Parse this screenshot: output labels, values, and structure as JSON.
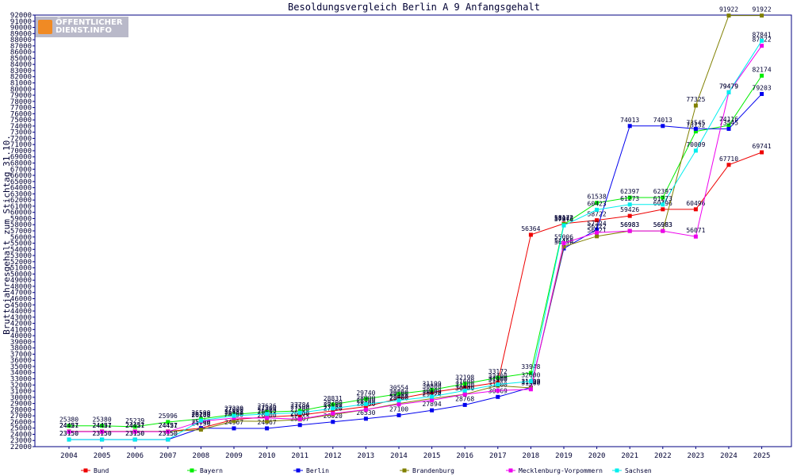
{
  "branding": {
    "line1": "ÖFFENTLICHER",
    "line2": "DIENST.INFO"
  },
  "chart_data": {
    "type": "line",
    "title": "Besoldungsvergleich Berlin A 9 Anfangsgehalt",
    "xlabel": "",
    "ylabel": "Bruttojahresgehalt zum Stichtag 31.10.",
    "ylim": [
      22000,
      92000
    ],
    "ytick_step": 1000,
    "grid": false,
    "legend_position": "bottom",
    "categories": [
      "2004",
      "2005",
      "2006",
      "2007",
      "2008",
      "2009",
      "2010",
      "2011",
      "2012",
      "2013",
      "2014",
      "2015",
      "2016",
      "2017",
      "2018",
      "2019",
      "2020",
      "2021",
      "2022",
      "2023",
      "2024",
      "2025"
    ],
    "series": [
      {
        "name": "Bund",
        "color": "#ee0000",
        "values": [
          24457,
          24457,
          24457,
          24457,
          25000,
          26400,
          26800,
          27100,
          27800,
          28500,
          29800,
          30800,
          31600,
          32400,
          56364,
          58172,
          58722,
          59426,
          60496,
          60496,
          67710,
          69741
        ]
      },
      {
        "name": "Bayern",
        "color": "#00ee00",
        "values": [
          25380,
          25380,
          25239,
          25996,
          26500,
          27229,
          27626,
          27784,
          28831,
          29740,
          30554,
          31199,
          32198,
          33172,
          33948,
          58043,
          61538,
          62397,
          62397,
          73132,
          74116,
          82174
        ]
      },
      {
        "name": "Berlin",
        "color": "#0000ee",
        "values": [
          23150,
          23150,
          23150,
          23150,
          25000,
          24967,
          24967,
          25507,
          26020,
          26530,
          27100,
          27894,
          28768,
          30069,
          31600,
          54150,
          57224,
          74013,
          74013,
          73545,
          73545,
          79203
        ]
      },
      {
        "name": "Brandenburg",
        "color": "#808000",
        "values": [
          24457,
          24457,
          24457,
          24457,
          24756,
          26150,
          26100,
          26400,
          27200,
          28000,
          29000,
          29800,
          30500,
          31900,
          31527,
          54450,
          56121,
          56983,
          56983,
          77325,
          91922,
          91922
        ]
      },
      {
        "name": "Mecklenburg-Vorpommern",
        "color": "#ee00ee",
        "values": [
          24421,
          24421,
          24421,
          24421,
          26108,
          26652,
          26652,
          26450,
          27370,
          28000,
          28860,
          29524,
          30470,
          31100,
          31300,
          55006,
          56722,
          56983,
          56983,
          56071,
          79479,
          87022
        ]
      },
      {
        "name": "Sachsen",
        "color": "#00eeee",
        "values": [
          23150,
          23150,
          23150,
          23150,
          26230,
          27000,
          27300,
          27500,
          28200,
          28900,
          29500,
          30100,
          31100,
          32100,
          32600,
          57876,
          60423,
          61273,
          61273,
          70009,
          79479,
          87841
        ]
      }
    ]
  }
}
